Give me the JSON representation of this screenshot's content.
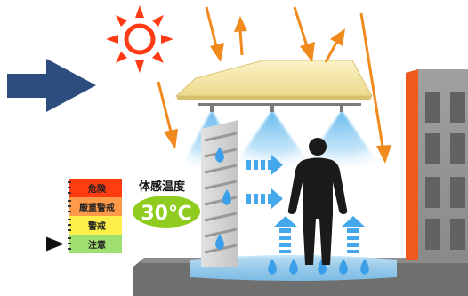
{
  "heat_index": {
    "title": "体感温度",
    "value": "30℃"
  },
  "warning_scale": {
    "levels": [
      {
        "label": "危険",
        "color": "#ff3b12"
      },
      {
        "label": "厳重警戒",
        "color": "#ff9a4a"
      },
      {
        "label": "警戒",
        "color": "#ffef4a"
      },
      {
        "label": "注意",
        "color": "#9fe070"
      }
    ],
    "current_level": "注意"
  },
  "colors": {
    "sun": "#ff3a14",
    "sunlight_arrow": "#f08a1c",
    "pointer_arrow": "#2c4d7e",
    "mist": "#5ab4ec",
    "water_drop": "#3a9fe8",
    "canopy": "#f7e9a8",
    "person": "#1a1a1a",
    "temp_badge": "#8fcc1f",
    "building": "#8a8a8a",
    "building_accent": "#f05a1e"
  },
  "icons": [
    "sun-icon",
    "person-icon",
    "water-drop-icon",
    "mist-spray-icon",
    "cooling-flow-arrow-icon",
    "pointer-arrow-icon"
  ]
}
